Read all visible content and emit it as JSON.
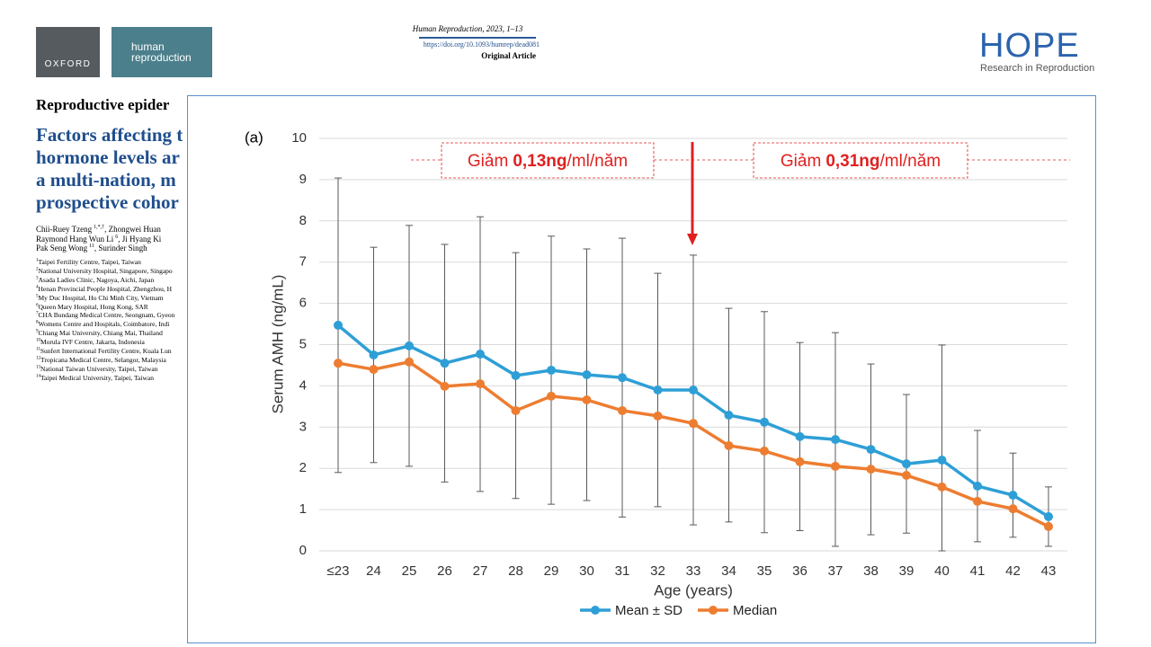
{
  "header": {
    "journal": "Human Reproduction, 2023, 1–13",
    "doi": "https://doi.org/10.1093/humrep/dead081",
    "article_type": "Original Article"
  },
  "logos": {
    "oxford": "OXFORD",
    "journal_line1": "human",
    "journal_line2": "reproduction",
    "hope": "HOPE",
    "hope_tagline": "Research in Reproduction"
  },
  "paper": {
    "section": "Reproductive epider",
    "title_lines": [
      "Factors affecting t",
      "hormone levels ar",
      "a multi-nation, m",
      "prospective cohor"
    ],
    "author_lines": [
      [
        "Chii-Ruey Tzeng",
        "1,*,†",
        ", Zhongwei Huan"
      ],
      [
        "Raymond Hang Wun Li",
        "6",
        ", Ji Hyang Ki"
      ],
      [
        "Pak Seng Wong",
        "11",
        ", Surinder Singh"
      ]
    ],
    "affiliations": [
      [
        "1",
        "Taipei Fertility Centre, Taipei, Taiwan"
      ],
      [
        "2",
        "National University Hospital, Singapore, Singapo"
      ],
      [
        "3",
        "Asada Ladies Clinic, Nagoya, Aichi, Japan"
      ],
      [
        "4",
        "Henan Provincial People Hospital, Zhengzhou, H"
      ],
      [
        "5",
        "My Duc Hospital, Ho Chi Minh City, Vietnam"
      ],
      [
        "6",
        "Queen Mary Hospital, Hong Kong, SAR"
      ],
      [
        "7",
        "CHA Bundang Medical Centre, Seongnam, Gyeon"
      ],
      [
        "8",
        "Womens Centre and Hospitals, Coimbatore, Indi"
      ],
      [
        "9",
        "Chiang Mai University, Chiang Mai, Thailand"
      ],
      [
        "10",
        "Morula IVF Centre, Jakarta, Indonesia"
      ],
      [
        "11",
        "Sunfert International Fertility Centre, Kuala Lun"
      ],
      [
        "12",
        "Tropicana Medical Centre, Selangor, Malaysia"
      ],
      [
        "13",
        "National Taiwan University, Taipei, Taiwan"
      ],
      [
        "14",
        "Taipei Medical University, Taipei, Taiwan"
      ]
    ]
  },
  "chart_data": {
    "type": "line",
    "panel_label": "(a)",
    "x_label": "Age (years)",
    "y_label": "Serum AMH (ng/mL)",
    "categories": [
      "≤23",
      "24",
      "25",
      "26",
      "27",
      "28",
      "29",
      "30",
      "31",
      "32",
      "33",
      "34",
      "35",
      "36",
      "37",
      "38",
      "39",
      "40",
      "41",
      "42",
      "43"
    ],
    "series": [
      {
        "name": "Mean ± SD",
        "color": "#2e9fd6",
        "values": [
          5.47,
          4.75,
          4.97,
          4.55,
          4.77,
          4.25,
          4.38,
          4.27,
          4.2,
          3.9,
          3.9,
          3.29,
          3.12,
          2.77,
          2.7,
          2.46,
          2.11,
          2.2,
          1.57,
          1.35,
          0.83
        ],
        "errors": [
          3.57,
          2.61,
          2.92,
          2.88,
          3.33,
          2.98,
          3.25,
          3.05,
          3.38,
          2.83,
          3.27,
          2.59,
          2.68,
          2.28,
          2.59,
          2.07,
          1.68,
          2.79,
          1.35,
          1.02,
          0.72
        ]
      },
      {
        "name": "Median",
        "color": "#ed7d31",
        "values": [
          4.55,
          4.4,
          4.58,
          3.99,
          4.05,
          3.4,
          3.75,
          3.66,
          3.4,
          3.27,
          3.09,
          2.55,
          2.42,
          2.16,
          2.05,
          1.98,
          1.83,
          1.55,
          1.2,
          1.02,
          0.59
        ]
      }
    ],
    "ylim": [
      0,
      10
    ],
    "yticks": [
      0,
      1,
      2,
      3,
      4,
      5,
      6,
      7,
      8,
      9,
      10
    ],
    "grid": true,
    "annotations": [
      {
        "prefix": "Giảm",
        "value": "0,13ng",
        "suffix": "/ml/năm"
      },
      {
        "prefix": "Giảm",
        "value": "0,31ng",
        "suffix": "/ml/năm"
      }
    ]
  }
}
